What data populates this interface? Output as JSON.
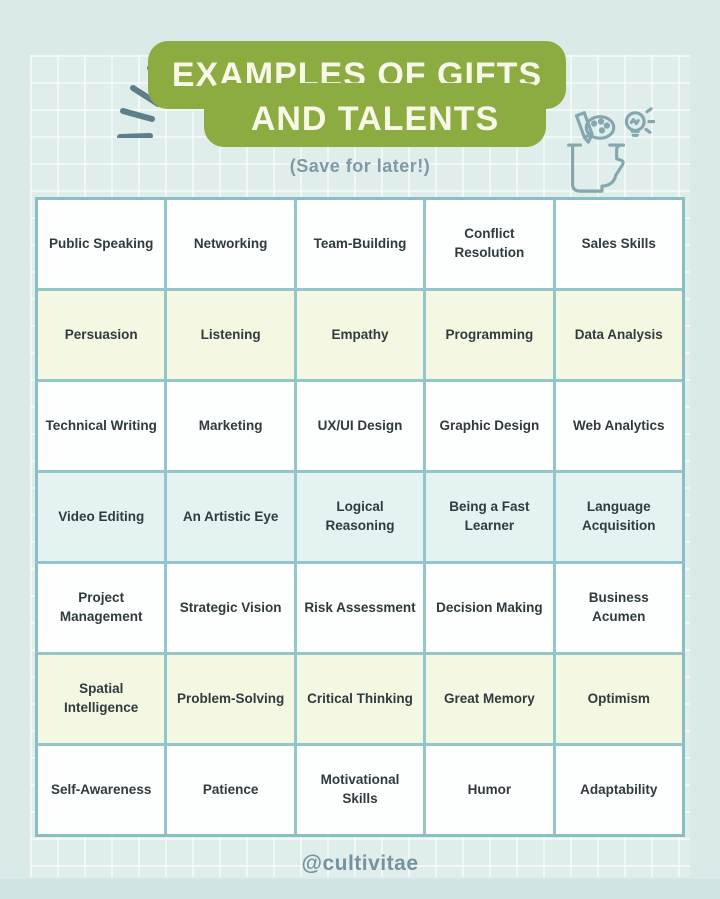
{
  "header": {
    "title_line1": "EXAMPLES OF GIFTS",
    "title_line2": "AND TALENTS",
    "subtitle": "(Save for later!)"
  },
  "footer": {
    "handle": "@cultivitae"
  },
  "icons": {
    "burst": "burst-accent-icon",
    "head": "creative-mind-icon"
  },
  "colors": {
    "background": "#d9eae8",
    "banner_green": "#8cab41",
    "banner_text": "#f7f8e8",
    "subtitle_text": "#7f9aa6",
    "grid_border": "#93c6cb",
    "grid_outer_border": "#8abec4",
    "cell_text": "#2f3b3e",
    "row_white": "#fdfefe",
    "row_yellow": "#f4f8e2",
    "row_blue": "#e5f2f2",
    "footer_text": "#7493a0",
    "icon_stroke": "#84a7ad",
    "burst_stroke": "#5c7f8a",
    "bottom_bar": "#cfe4e3"
  },
  "grid": {
    "rows": [
      {
        "bg": "row_white",
        "cells": [
          "Public Speaking",
          "Networking",
          "Team-Building",
          "Conflict Resolution",
          "Sales Skills"
        ]
      },
      {
        "bg": "row_yellow",
        "cells": [
          "Persuasion",
          "Listening",
          "Empathy",
          "Programming",
          "Data Analysis"
        ]
      },
      {
        "bg": "row_white",
        "cells": [
          "Technical Writing",
          "Marketing",
          "UX/UI Design",
          "Graphic Design",
          "Web Analytics"
        ]
      },
      {
        "bg": "row_blue",
        "cells": [
          "Video Editing",
          "An Artistic Eye",
          "Logical Reasoning",
          "Being a Fast Learner",
          "Language Acquisition"
        ]
      },
      {
        "bg": "row_white",
        "cells": [
          "Project Management",
          "Strategic Vision",
          "Risk Assessment",
          "Decision Making",
          "Business Acumen"
        ]
      },
      {
        "bg": "row_yellow",
        "cells": [
          "Spatial Intelligence",
          "Problem-Solving",
          "Critical Thinking",
          "Great Memory",
          "Optimism"
        ]
      },
      {
        "bg": "row_white",
        "cells": [
          "Self-Awareness",
          "Patience",
          "Motivational Skills",
          "Humor",
          "Adaptability"
        ]
      }
    ]
  }
}
